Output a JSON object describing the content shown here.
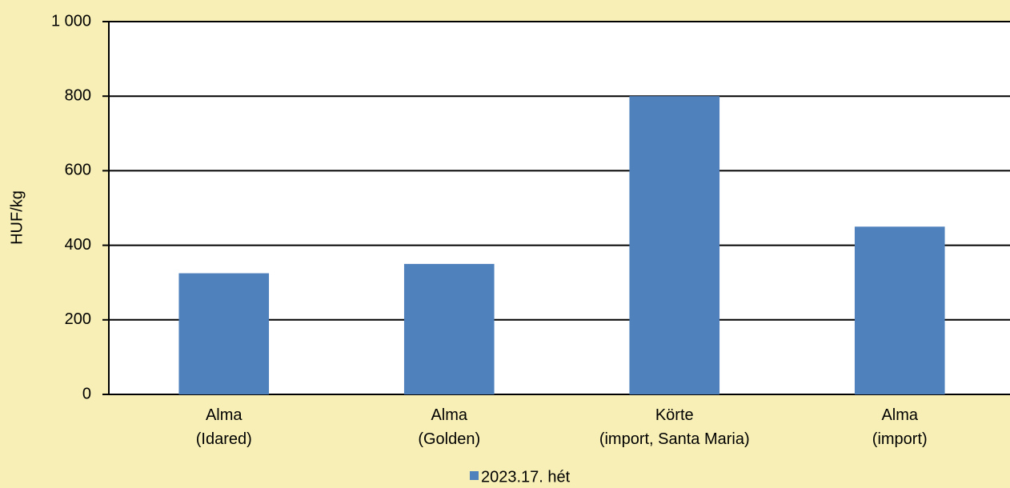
{
  "chart_data": {
    "type": "bar",
    "y_label": "HUF/kg",
    "categories": [
      [
        "Alma",
        "(Idared)"
      ],
      [
        "Alma",
        "(Golden)"
      ],
      [
        "Körte",
        "(import, Santa Maria)"
      ],
      [
        "Alma",
        "(import)"
      ]
    ],
    "series": [
      {
        "name": "2023.17. hét",
        "color": "#4f81bd",
        "values": [
          325,
          350,
          800,
          450
        ]
      }
    ],
    "ylim": [
      0,
      1000
    ],
    "yticks": [
      0,
      200,
      400,
      600,
      800,
      {
        "value": 1000,
        "label": "1 000"
      }
    ],
    "grid": true,
    "legend": "bottom"
  }
}
